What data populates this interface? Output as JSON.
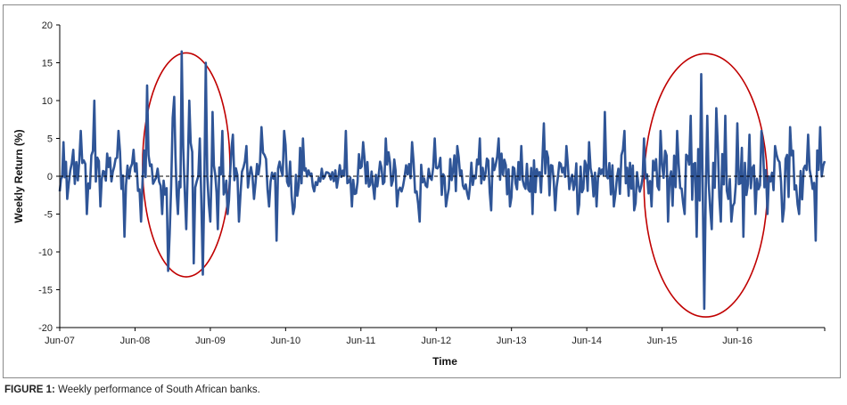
{
  "caption": {
    "label": "FIGURE 1:",
    "text": " Weekly performance of South African banks."
  },
  "chart_data": {
    "type": "line",
    "xlabel": "Time",
    "ylabel": "Weekly Return (%)",
    "ylim": [
      -20,
      20
    ],
    "yticks": [
      -20,
      -15,
      -10,
      -5,
      0,
      5,
      10,
      15,
      20
    ],
    "x_ticks": [
      "Jun-07",
      "Jun-08",
      "Jun-09",
      "Jun-10",
      "Jun-11",
      "Jun-12",
      "Jun-13",
      "Jun-14",
      "Jun-15",
      "Jun-16"
    ],
    "x_range_years": [
      2007.42,
      2017.58
    ],
    "zero_line": "dashed",
    "grid": false,
    "series": [
      {
        "color": "#2f5597",
        "anchors": [
          [
            2007.42,
            -2
          ],
          [
            2007.47,
            4.5
          ],
          [
            2007.52,
            -3
          ],
          [
            2007.6,
            3.5
          ],
          [
            2007.7,
            6
          ],
          [
            2007.78,
            -5
          ],
          [
            2007.88,
            10
          ],
          [
            2007.96,
            -4
          ],
          [
            2008.05,
            3
          ],
          [
            2008.2,
            6
          ],
          [
            2008.28,
            -8
          ],
          [
            2008.4,
            3.5
          ],
          [
            2008.5,
            -6
          ],
          [
            2008.58,
            12
          ],
          [
            2008.66,
            -1
          ],
          [
            2008.72,
            1
          ],
          [
            2008.78,
            -5
          ],
          [
            2008.86,
            -12.5
          ],
          [
            2008.94,
            10.5
          ],
          [
            2008.99,
            -5
          ],
          [
            2009.04,
            16.5
          ],
          [
            2009.1,
            -7
          ],
          [
            2009.14,
            10
          ],
          [
            2009.2,
            -11.5
          ],
          [
            2009.26,
            0
          ],
          [
            2009.28,
            5
          ],
          [
            2009.32,
            -13
          ],
          [
            2009.36,
            15
          ],
          [
            2009.42,
            -6
          ],
          [
            2009.45,
            8.5
          ],
          [
            2009.52,
            -7
          ],
          [
            2009.58,
            6
          ],
          [
            2009.65,
            -5
          ],
          [
            2009.72,
            5.5
          ],
          [
            2009.8,
            -6
          ],
          [
            2009.9,
            4
          ],
          [
            2010.0,
            -3
          ],
          [
            2010.1,
            6.5
          ],
          [
            2010.2,
            -4
          ],
          [
            2010.3,
            -8.5
          ],
          [
            2010.4,
            6
          ],
          [
            2010.52,
            -5
          ],
          [
            2010.65,
            5
          ],
          [
            2010.8,
            -2
          ],
          [
            2010.9,
            1
          ],
          [
            2011.1,
            -1.5
          ],
          [
            2011.22,
            6
          ],
          [
            2011.3,
            -4
          ],
          [
            2011.45,
            4.5
          ],
          [
            2011.6,
            -3
          ],
          [
            2011.75,
            5
          ],
          [
            2011.9,
            -4
          ],
          [
            2012.1,
            4.5
          ],
          [
            2012.2,
            -6
          ],
          [
            2012.4,
            5
          ],
          [
            2012.55,
            -4
          ],
          [
            2012.7,
            4
          ],
          [
            2012.85,
            -3
          ],
          [
            2013.0,
            5
          ],
          [
            2013.15,
            -4.5
          ],
          [
            2013.25,
            5
          ],
          [
            2013.4,
            -4
          ],
          [
            2013.55,
            4
          ],
          [
            2013.7,
            -5
          ],
          [
            2013.85,
            7
          ],
          [
            2014.0,
            -4.5
          ],
          [
            2014.15,
            4
          ],
          [
            2014.3,
            -5
          ],
          [
            2014.45,
            4.5
          ],
          [
            2014.55,
            -4
          ],
          [
            2014.66,
            8.5
          ],
          [
            2014.78,
            -4
          ],
          [
            2014.92,
            6
          ],
          [
            2015.05,
            -4.5
          ],
          [
            2015.18,
            5
          ],
          [
            2015.28,
            -4
          ],
          [
            2015.4,
            6
          ],
          [
            2015.5,
            -6
          ],
          [
            2015.62,
            6
          ],
          [
            2015.72,
            -5
          ],
          [
            2015.8,
            8
          ],
          [
            2015.88,
            -8
          ],
          [
            2015.94,
            13.5
          ],
          [
            2015.98,
            -17.5
          ],
          [
            2016.02,
            8
          ],
          [
            2016.08,
            -7
          ],
          [
            2016.14,
            9
          ],
          [
            2016.2,
            -6
          ],
          [
            2016.26,
            8
          ],
          [
            2016.34,
            -6
          ],
          [
            2016.42,
            7
          ],
          [
            2016.5,
            -8
          ],
          [
            2016.58,
            5.5
          ],
          [
            2016.66,
            -5
          ],
          [
            2016.74,
            6
          ],
          [
            2016.82,
            -5
          ],
          [
            2016.92,
            4
          ],
          [
            2017.02,
            -6
          ],
          [
            2017.12,
            6.5
          ],
          [
            2017.24,
            -5
          ],
          [
            2017.36,
            5.5
          ],
          [
            2017.46,
            -8.5
          ],
          [
            2017.52,
            6.5
          ],
          [
            2017.58,
            2
          ]
        ]
      }
    ],
    "annotations": [
      {
        "type": "ellipse",
        "color": "#c00000",
        "cx_year": 2009.1,
        "cy": 1.5,
        "rx_years": 0.58,
        "ry": 14.8
      },
      {
        "type": "ellipse",
        "color": "#c00000",
        "cx_year": 2016.0,
        "cy": -1.2,
        "rx_years": 0.82,
        "ry": 17.4
      }
    ]
  }
}
